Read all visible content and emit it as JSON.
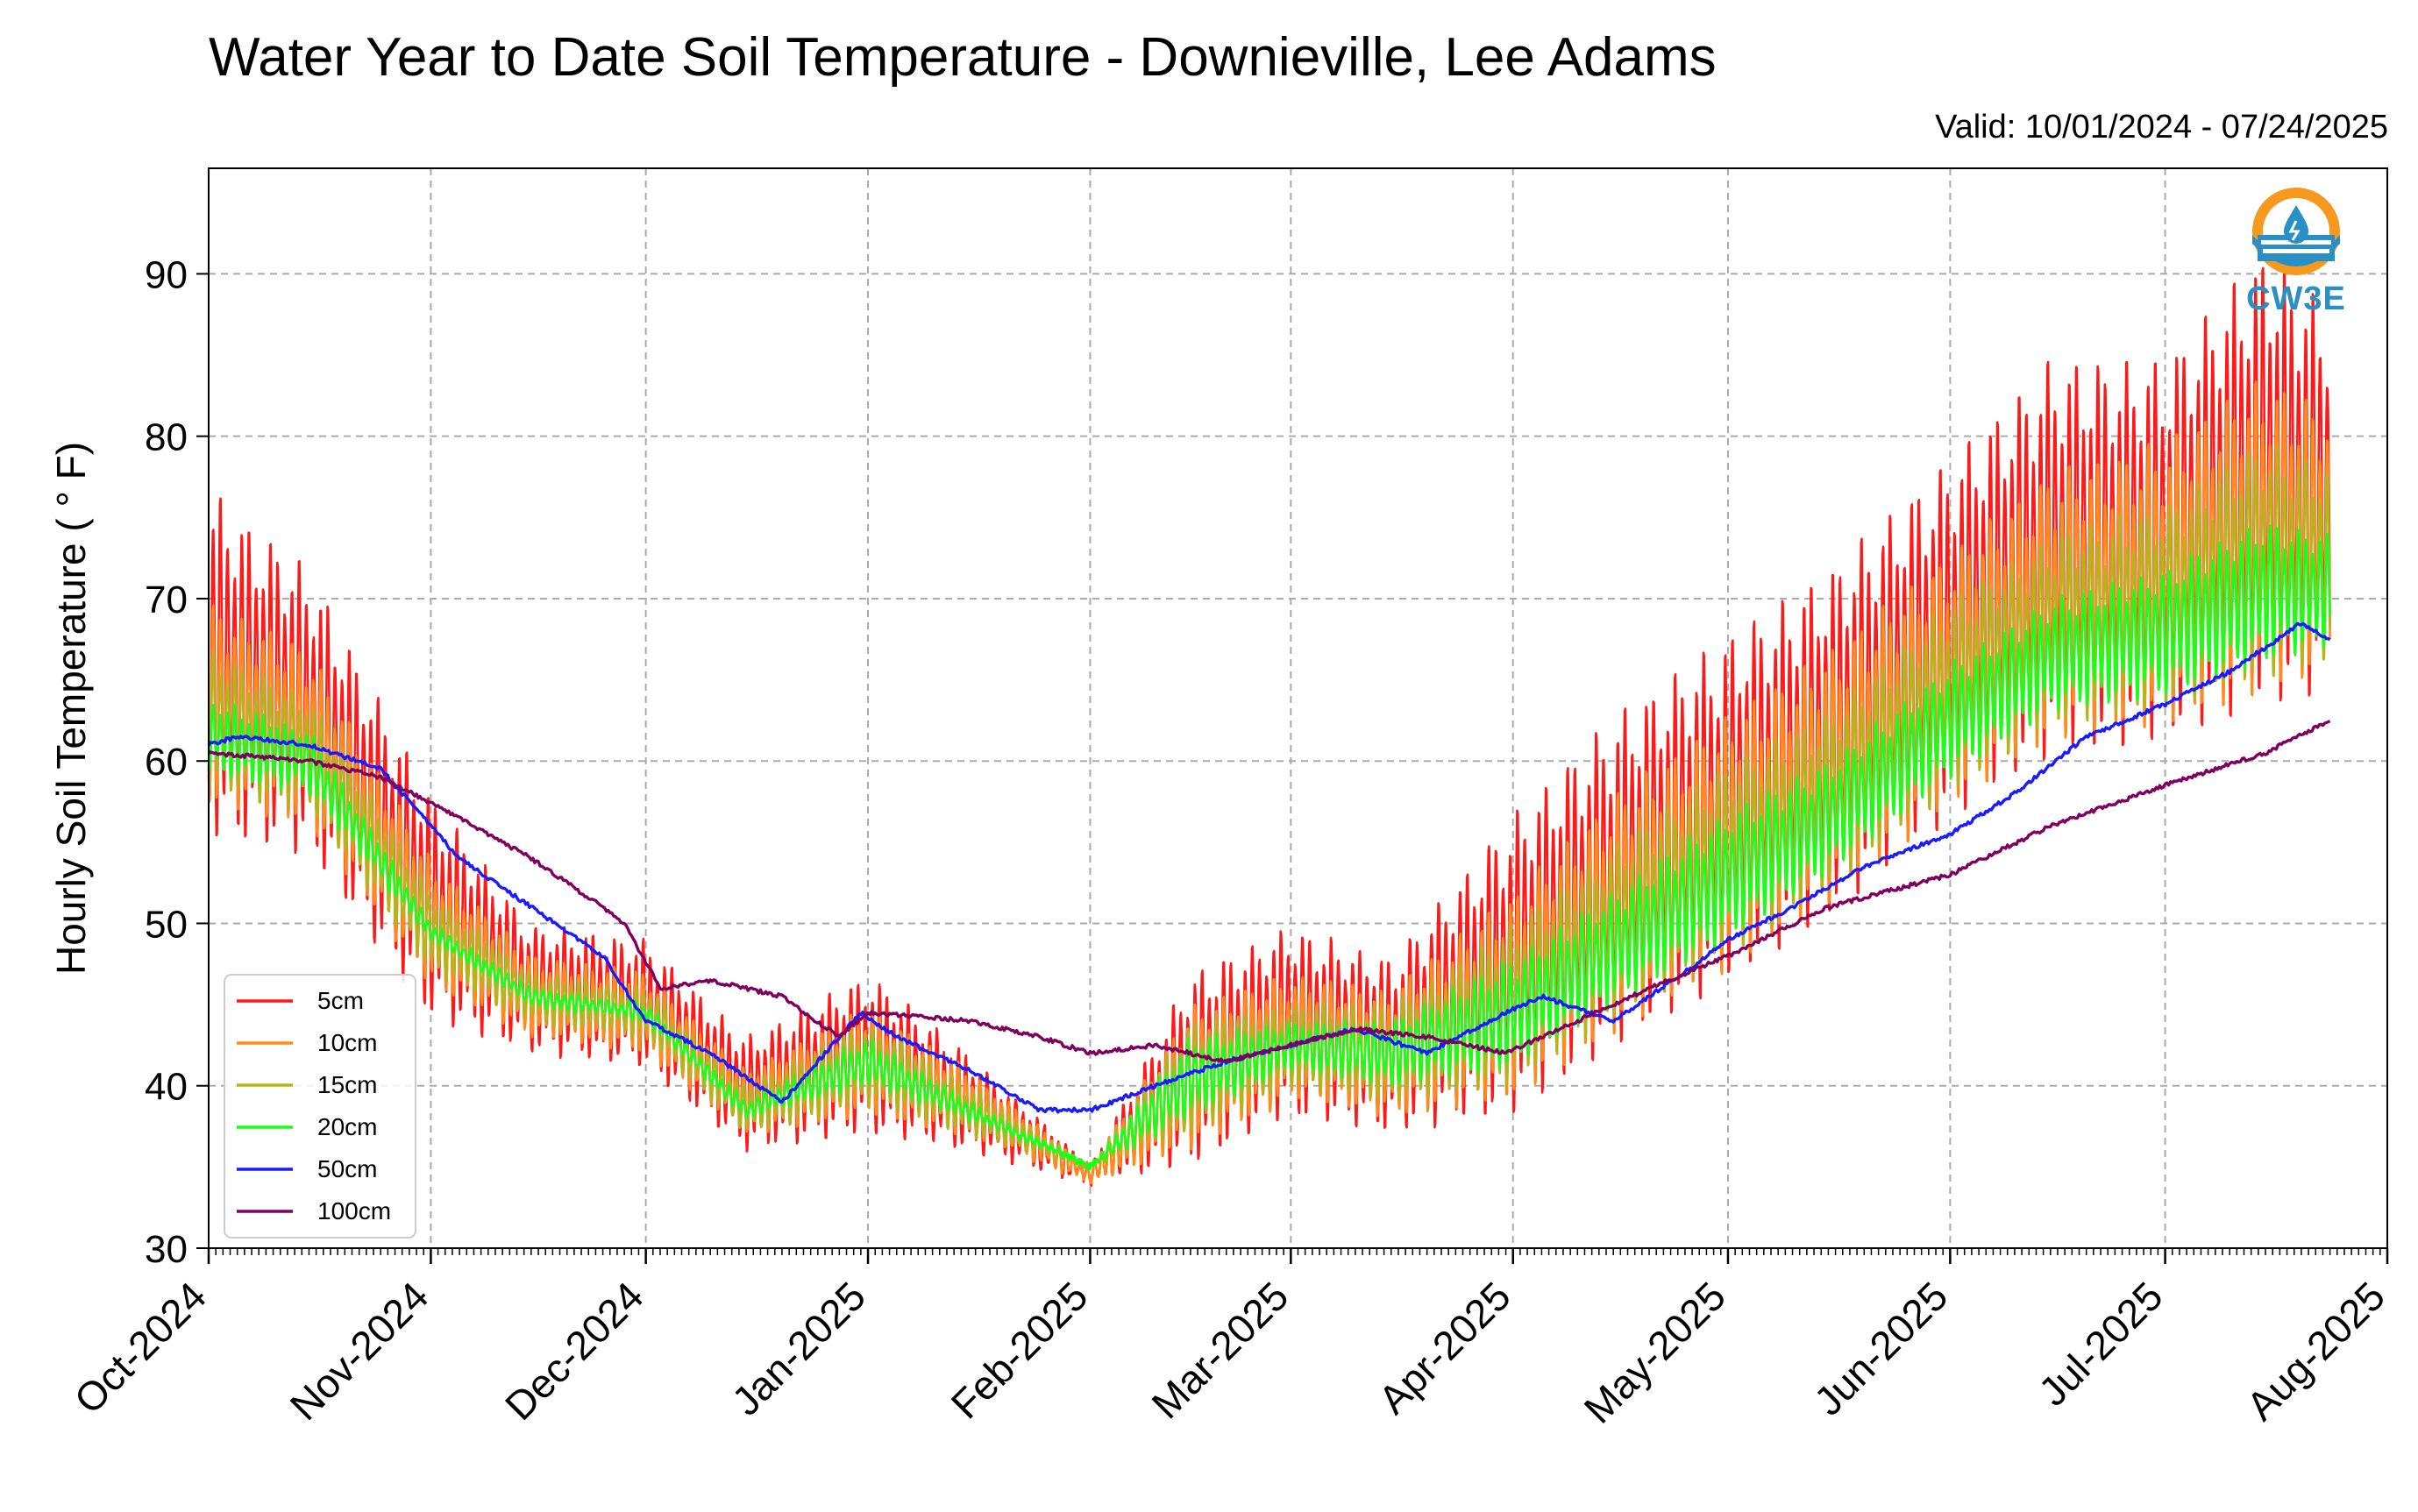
{
  "chart_data": {
    "type": "line",
    "title": "Water Year to Date Soil Temperature - Downieville, Lee Adams",
    "subtitle": "Valid: 10/01/2024 - 07/24/2025",
    "ylabel": "Hourly Soil Temperature ( ° F)",
    "xlabel": "",
    "ylim": [
      30,
      96.5
    ],
    "yticks": [
      30,
      40,
      50,
      60,
      70,
      80,
      90
    ],
    "xlim_days": [
      0,
      304
    ],
    "xticks": [
      {
        "label": "Oct-2024",
        "day": 0
      },
      {
        "label": "Nov-2024",
        "day": 31
      },
      {
        "label": "Dec-2024",
        "day": 61
      },
      {
        "label": "Jan-2025",
        "day": 92
      },
      {
        "label": "Feb-2025",
        "day": 123
      },
      {
        "label": "Mar-2025",
        "day": 151
      },
      {
        "label": "Apr-2025",
        "day": 182
      },
      {
        "label": "May-2025",
        "day": 212
      },
      {
        "label": "Jun-2025",
        "day": 243
      },
      {
        "label": "Jul-2025",
        "day": 273
      },
      {
        "label": "Aug-2025",
        "day": 304
      }
    ],
    "grid": true,
    "legend_position": "lower-left",
    "logo_text": "CW3E",
    "series": [
      {
        "name": "5cm",
        "color": "#ff1a1a",
        "dates": [
          "2024-10-01",
          "2024-10-15",
          "2024-11-01",
          "2024-11-15",
          "2024-12-01",
          "2024-12-15",
          "2025-01-01",
          "2025-01-15",
          "2025-02-01",
          "2025-02-15",
          "2025-03-01",
          "2025-03-15",
          "2025-04-01",
          "2025-04-15",
          "2025-05-01",
          "2025-05-15",
          "2025-06-01",
          "2025-06-15",
          "2025-07-01",
          "2025-07-15",
          "2025-07-24"
        ],
        "daily_min": [
          55,
          54,
          44,
          42,
          41,
          36,
          37,
          36,
          34,
          35,
          38,
          37,
          38,
          42,
          46,
          50,
          56,
          60,
          61,
          63,
          64
        ],
        "daily_max": [
          77,
          72,
          58,
          50,
          49,
          43,
          47,
          42,
          35,
          47,
          50,
          48,
          57,
          63,
          68,
          72,
          79,
          85,
          85,
          92,
          88
        ]
      },
      {
        "name": "10cm",
        "color": "#ff8c1a",
        "dates": [
          "2024-10-01",
          "2024-10-15",
          "2024-11-01",
          "2024-11-15",
          "2024-12-01",
          "2024-12-15",
          "2025-01-01",
          "2025-01-15",
          "2025-02-01",
          "2025-02-15",
          "2025-03-01",
          "2025-03-15",
          "2025-04-01",
          "2025-04-15",
          "2025-05-01",
          "2025-05-15",
          "2025-06-01",
          "2025-06-15",
          "2025-07-01",
          "2025-07-15",
          "2025-07-24"
        ],
        "daily_min": [
          57,
          56,
          46,
          43,
          42,
          37,
          38,
          37,
          34,
          36,
          39,
          38,
          39,
          43,
          47,
          51,
          57,
          61,
          62,
          64,
          65
        ],
        "daily_max": [
          70,
          67,
          54,
          48,
          47,
          41,
          45,
          41,
          35,
          45,
          47,
          46,
          52,
          58,
          63,
          67,
          73,
          78,
          80,
          84,
          82
        ]
      },
      {
        "name": "15cm",
        "color": "#b5b51a",
        "dates": [
          "2024-10-01",
          "2024-10-15",
          "2024-11-01",
          "2024-11-15",
          "2024-12-01",
          "2024-12-15",
          "2025-01-01",
          "2025-01-15",
          "2025-02-01",
          "2025-02-15",
          "2025-03-01",
          "2025-03-15",
          "2025-04-01",
          "2025-04-15",
          "2025-05-01",
          "2025-05-15",
          "2025-06-01",
          "2025-06-15",
          "2025-07-01",
          "2025-07-15",
          "2025-07-24"
        ],
        "daily_min": [
          58,
          57,
          47,
          44,
          43,
          37,
          39,
          37,
          35,
          37,
          40,
          39,
          40,
          44,
          48,
          52,
          58,
          62,
          63,
          65,
          66
        ],
        "daily_max": [
          67,
          64,
          52,
          47,
          46,
          40,
          44,
          40,
          35,
          44,
          45,
          45,
          50,
          55,
          60,
          63,
          70,
          74,
          76,
          80,
          78
        ]
      },
      {
        "name": "20cm",
        "color": "#1aff1a",
        "dates": [
          "2024-10-01",
          "2024-10-15",
          "2024-11-01",
          "2024-11-15",
          "2024-12-01",
          "2024-12-15",
          "2025-01-01",
          "2025-01-15",
          "2025-02-01",
          "2025-02-15",
          "2025-03-01",
          "2025-03-15",
          "2025-04-01",
          "2025-04-15",
          "2025-05-01",
          "2025-05-15",
          "2025-06-01",
          "2025-06-15",
          "2025-07-01",
          "2025-07-15",
          "2025-07-24"
        ],
        "daily_min": [
          59,
          58,
          49,
          45,
          44,
          38,
          40,
          38,
          35,
          38,
          41,
          40,
          41,
          45,
          49,
          53,
          59,
          63,
          64,
          66,
          67
        ],
        "daily_max": [
          64,
          62,
          50,
          46,
          45,
          39,
          43,
          39,
          35,
          43,
          44,
          44,
          48,
          52,
          57,
          60,
          66,
          70,
          72,
          75,
          74
        ]
      },
      {
        "name": "50cm",
        "color": "#1a1aff",
        "dates": [
          "2024-10-01",
          "2024-10-05",
          "2024-10-15",
          "2024-10-25",
          "2024-11-05",
          "2024-11-15",
          "2024-11-25",
          "2024-12-01",
          "2024-12-10",
          "2024-12-20",
          "2024-12-31",
          "2025-01-05",
          "2025-01-15",
          "2025-01-25",
          "2025-02-01",
          "2025-02-10",
          "2025-02-20",
          "2025-03-01",
          "2025-03-10",
          "2025-03-20",
          "2025-03-31",
          "2025-04-05",
          "2025-04-15",
          "2025-04-25",
          "2025-05-01",
          "2025-05-10",
          "2025-05-20",
          "2025-06-01",
          "2025-06-10",
          "2025-06-20",
          "2025-07-01",
          "2025-07-10",
          "2025-07-20",
          "2025-07-24"
        ],
        "values": [
          61,
          61.5,
          61,
          59.5,
          54,
          51,
          48,
          44,
          42,
          39,
          44.5,
          43,
          41,
          38.5,
          38.5,
          40,
          41.5,
          42.5,
          43.5,
          42,
          44.5,
          45.5,
          44,
          47,
          49,
          51,
          53.5,
          55.5,
          58,
          61.5,
          63.5,
          65.5,
          68.5,
          67.5
        ]
      },
      {
        "name": "100cm",
        "color": "#800060",
        "dates": [
          "2024-10-01",
          "2024-10-15",
          "2024-10-25",
          "2024-11-05",
          "2024-11-15",
          "2024-11-25",
          "2024-11-28",
          "2024-12-03",
          "2024-12-10",
          "2024-12-20",
          "2024-12-28",
          "2025-01-01",
          "2025-01-15",
          "2025-01-25",
          "2025-02-01",
          "2025-02-10",
          "2025-02-20",
          "2025-03-01",
          "2025-03-10",
          "2025-03-20",
          "2025-03-31",
          "2025-04-10",
          "2025-04-20",
          "2025-05-01",
          "2025-05-15",
          "2025-06-01",
          "2025-06-15",
          "2025-07-01",
          "2025-07-15",
          "2025-07-24"
        ],
        "values": [
          60.5,
          60,
          59,
          56.5,
          54,
          51,
          50,
          46,
          46.5,
          45.5,
          43,
          44.5,
          44,
          43,
          42,
          42.5,
          41.5,
          42.5,
          43.5,
          43,
          42,
          44,
          46,
          48,
          51,
          53,
          56,
          58.5,
          60.5,
          62.5
        ]
      }
    ]
  }
}
